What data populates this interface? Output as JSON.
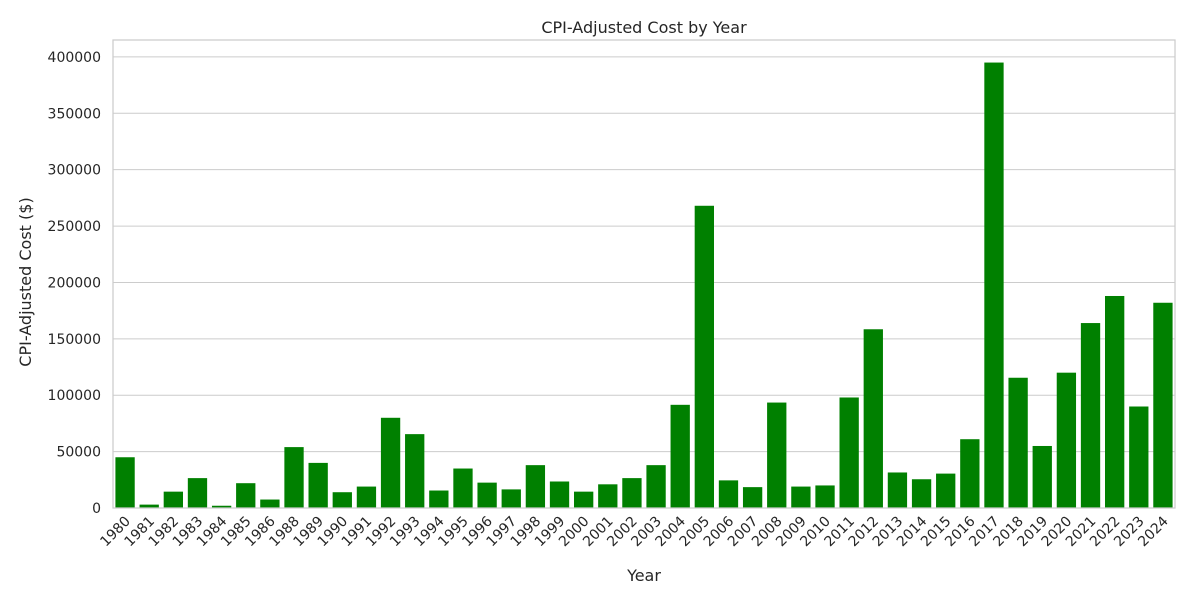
{
  "chart_data": {
    "type": "bar",
    "title": "CPI-Adjusted Cost by Year",
    "xlabel": "Year",
    "ylabel": "CPI-Adjusted Cost ($)",
    "ylim": [
      0,
      415000
    ],
    "yticks": [
      0,
      50000,
      100000,
      150000,
      200000,
      250000,
      300000,
      350000,
      400000
    ],
    "grid": true,
    "bar_color": "#008000",
    "categories": [
      "1980",
      "1981",
      "1982",
      "1983",
      "1984",
      "1985",
      "1986",
      "1988",
      "1989",
      "1990",
      "1991",
      "1992",
      "1993",
      "1994",
      "1995",
      "1996",
      "1997",
      "1998",
      "1999",
      "2000",
      "2001",
      "2002",
      "2003",
      "2004",
      "2005",
      "2006",
      "2007",
      "2008",
      "2009",
      "2010",
      "2011",
      "2012",
      "2013",
      "2014",
      "2015",
      "2016",
      "2017",
      "2018",
      "2019",
      "2020",
      "2021",
      "2022",
      "2023",
      "2024"
    ],
    "values": [
      45000,
      3000,
      14500,
      26500,
      2000,
      22000,
      7500,
      54000,
      40000,
      14000,
      19000,
      80000,
      65500,
      15500,
      35000,
      22500,
      16500,
      38000,
      23500,
      14500,
      21000,
      26500,
      38000,
      91500,
      268000,
      24500,
      18500,
      93500,
      19000,
      20000,
      98000,
      158500,
      31500,
      25500,
      30500,
      61000,
      395000,
      115500,
      55000,
      120000,
      164000,
      188000,
      90000,
      182000
    ]
  }
}
